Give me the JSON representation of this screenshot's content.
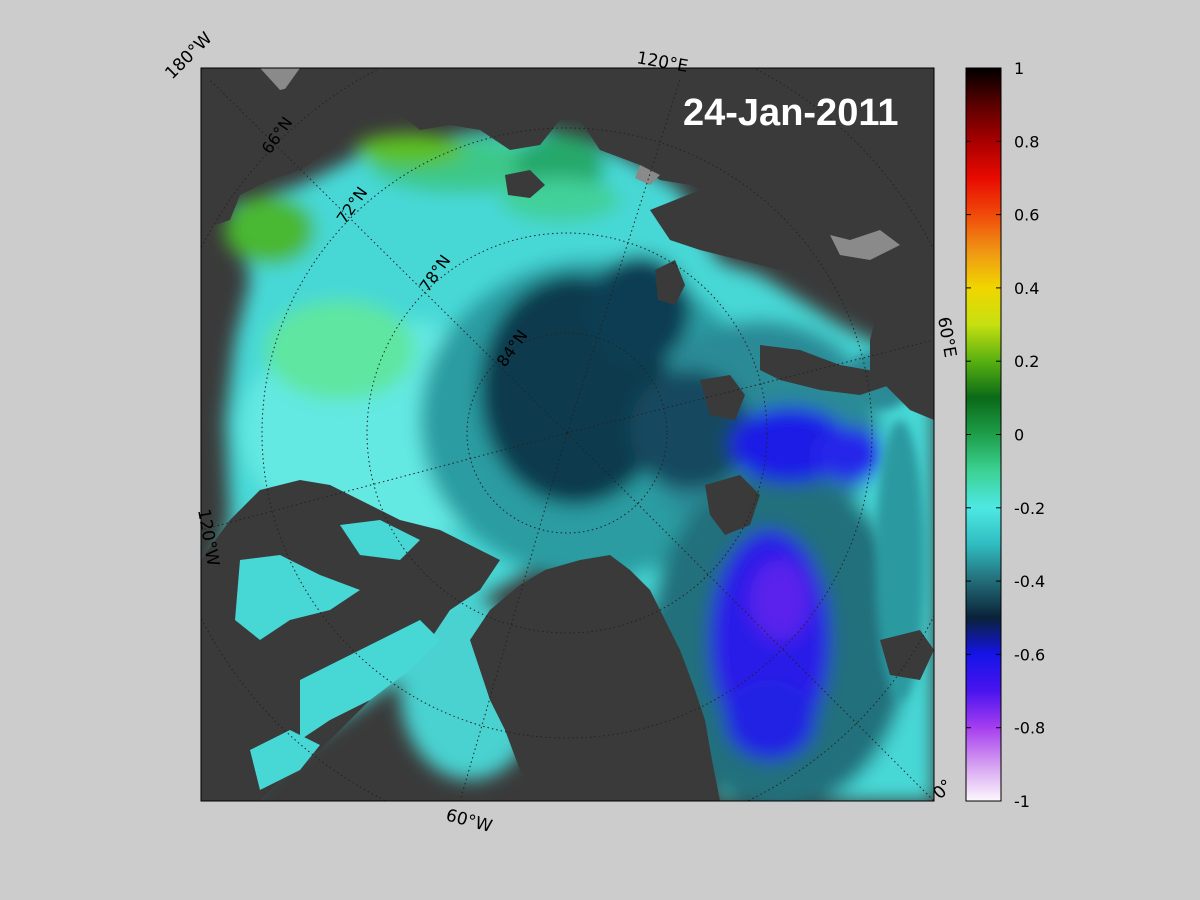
{
  "date_label": "24-Jan-2011",
  "meridian_labels": {
    "lon_180w": "180°W",
    "lon_120e": "120°E",
    "lon_120w": "120°W",
    "lon_60e": "60°E",
    "lon_60w": "60°W",
    "lon_0": "0°"
  },
  "latitude_labels": {
    "lat_66n": "66°N",
    "lat_72n": "72°N",
    "lat_78n": "78°N",
    "lat_84n": "84°N"
  },
  "colorbar": {
    "min": -1,
    "max": 1,
    "tick_labels": [
      "1",
      "0.8",
      "0.6",
      "0.4",
      "0.2",
      "0",
      "-0.2",
      "-0.4",
      "-0.6",
      "-0.8",
      "-1"
    ],
    "colors": [
      "#fdf8fd",
      "#d49ef0",
      "#a63ef0",
      "#4a14ee",
      "#1414e8",
      "#0a2238",
      "#236c78",
      "#2fbcc0",
      "#4ee8e4",
      "#3cd294",
      "#1e9e4a",
      "#0a6a18",
      "#58b010",
      "#c6e010",
      "#f0d600",
      "#f09614",
      "#f04a0a",
      "#e80a00",
      "#a80000",
      "#5a0000",
      "#000000"
    ]
  },
  "map_colors": {
    "land": "#3a3a3a",
    "ice_shelf_gray": "#8a8a8a",
    "frame_border": "#000000",
    "background": "#cccccc"
  }
}
